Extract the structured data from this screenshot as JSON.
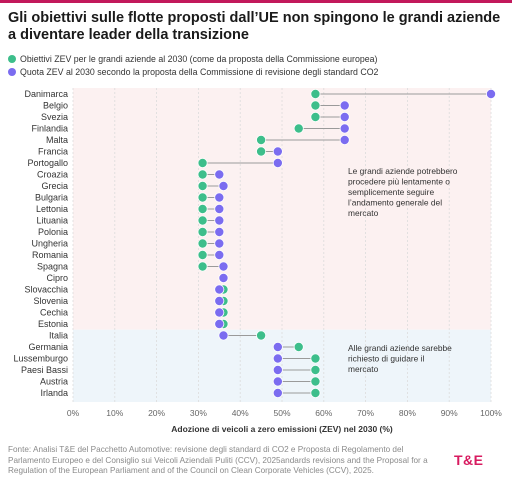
{
  "title": "Gli obiettivi sulle flotte proposti dall’UE non spingono le grandi aziende a diventare leader della transizione",
  "legend": [
    {
      "label": "Obiettivi ZEV per le grandi aziende al 2030 (come da proposta della Commissione europea)",
      "color": "#3dbe8b"
    },
    {
      "label": "Quota ZEV al 2030 secondo la proposta della Commissione di revisione degli standard CO2",
      "color": "#7b6cf0"
    }
  ],
  "chart_data": {
    "type": "dumbbell",
    "xlabel": "Adozione di veicoli a zero emissioni (ZEV) nel 2030 (%)",
    "xlim": [
      0,
      100
    ],
    "xticks": [
      "0%",
      "10%",
      "20%",
      "30%",
      "40%",
      "50%",
      "60%",
      "70%",
      "80%",
      "90%",
      "100%"
    ],
    "xtick_values": [
      0,
      10,
      20,
      30,
      40,
      50,
      60,
      70,
      80,
      90,
      100
    ],
    "series_names": [
      "Obiettivi ZEV per le grandi aziende al 2030",
      "Quota ZEV al 2030"
    ],
    "categories": [
      "Danimarca",
      "Belgio",
      "Svezia",
      "Finlandia",
      "Malta",
      "Francia",
      "Portogallo",
      "Croazia",
      "Grecia",
      "Bulgaria",
      "Lettonia",
      "Lituania",
      "Polonia",
      "Ungheria",
      "Romania",
      "Spagna",
      "Cipro",
      "Slovacchia",
      "Slovenia",
      "Cechia",
      "Estonia",
      "Italia",
      "Germania",
      "Lussemburgo",
      "Paesi Bassi",
      "Austria",
      "Irlanda"
    ],
    "target": [
      58,
      58,
      58,
      54,
      45,
      45,
      31,
      31,
      31,
      31,
      31,
      31,
      31,
      31,
      31,
      31,
      36,
      36,
      36,
      36,
      36,
      45,
      54,
      58,
      58,
      58,
      58
    ],
    "share": [
      100,
      65,
      65,
      65,
      65,
      49,
      49,
      35,
      36,
      35,
      35,
      35,
      35,
      35,
      35,
      36,
      36,
      35,
      35,
      35,
      35,
      36,
      49,
      49,
      49,
      49,
      49
    ],
    "zones": [
      {
        "from": "Danimarca",
        "to": "Estonia",
        "color": "#fcf1f1"
      },
      {
        "from": "Italia",
        "to": "Irlanda",
        "color": "#eef5fa"
      }
    ],
    "annotations": [
      "Le grandi aziende potrebbero procedere più lentamente o semplicemente seguire l’andamento generale del mercato",
      "Alle grandi aziende sarebbe richiesto di guidare il mercato"
    ],
    "colors": {
      "target": "#3dbe8b",
      "share": "#7b6cf0",
      "connector": "#9a9a9a"
    }
  },
  "footer": "Fonte: Analisi T&E del Pacchetto Automotive: revisione degli standard di CO2 e Proposta di Regolamento del Parlamento Europeo e del Consiglio sui Veicoli Aziendali Puliti (CCV), 2025andards revisions and the Proposal for a Regulation of the European Parliament and of the Council on Clean Corporate Vehicles (CCV), 2025.",
  "logo": "T&E"
}
